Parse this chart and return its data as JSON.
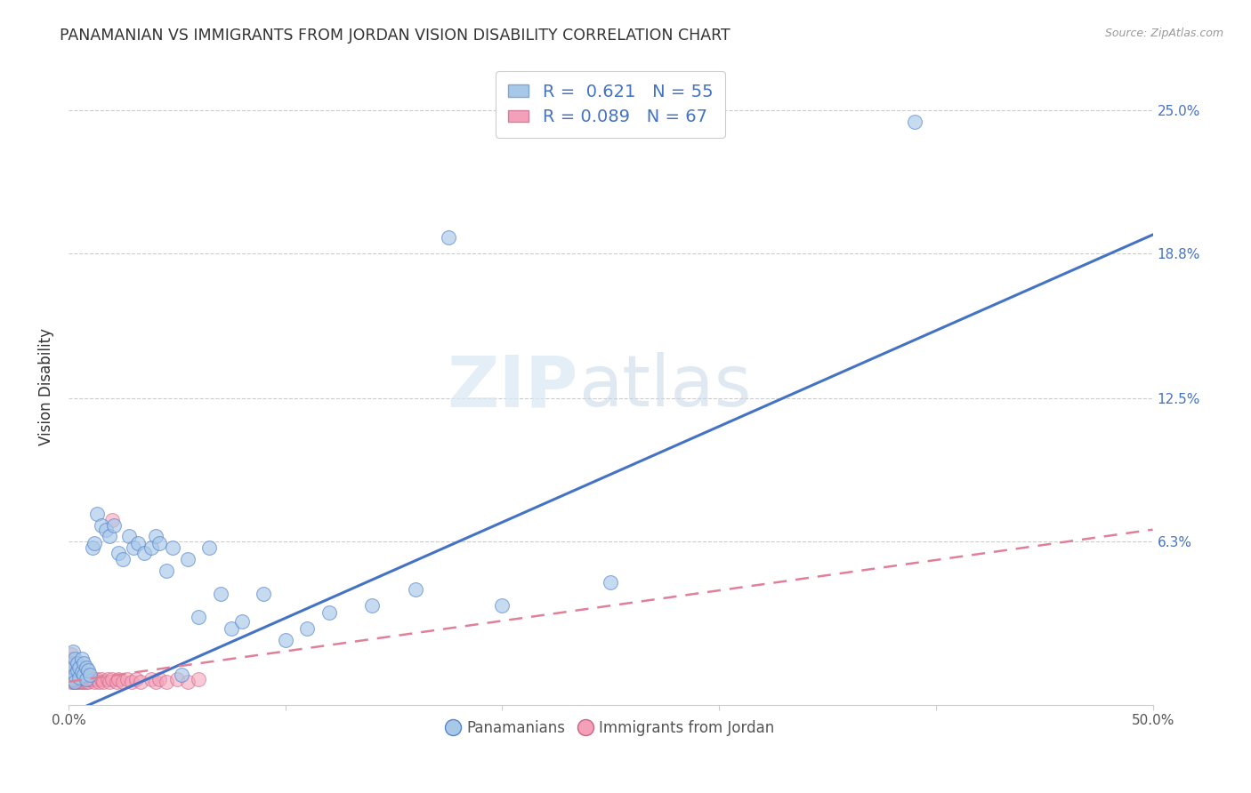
{
  "title": "PANAMANIAN VS IMMIGRANTS FROM JORDAN VISION DISABILITY CORRELATION CHART",
  "source": "Source: ZipAtlas.com",
  "ylabel": "Vision Disability",
  "xlim": [
    0.0,
    0.5
  ],
  "ylim": [
    -0.008,
    0.268
  ],
  "ytick_labels_right": [
    "25.0%",
    "18.8%",
    "12.5%",
    "6.3%"
  ],
  "ytick_values_right": [
    0.25,
    0.188,
    0.125,
    0.063
  ],
  "pan_color": "#a8c8e8",
  "jordan_color": "#f4a0b8",
  "pan_line_color": "#4472c4",
  "jordan_line_color": "#e08098",
  "pan_R": 0.621,
  "pan_N": 55,
  "jordan_R": 0.089,
  "jordan_N": 67,
  "pan_trend_x": [
    0.0,
    0.5
  ],
  "pan_trend_y": [
    -0.012,
    0.196
  ],
  "jordan_trend_x": [
    0.0,
    0.5
  ],
  "jordan_trend_y": [
    0.002,
    0.068
  ],
  "pan_scatter_x": [
    0.001,
    0.001,
    0.002,
    0.002,
    0.002,
    0.003,
    0.003,
    0.003,
    0.004,
    0.004,
    0.005,
    0.005,
    0.006,
    0.006,
    0.007,
    0.007,
    0.008,
    0.008,
    0.009,
    0.01,
    0.011,
    0.012,
    0.013,
    0.015,
    0.017,
    0.019,
    0.021,
    0.023,
    0.025,
    0.028,
    0.03,
    0.032,
    0.035,
    0.038,
    0.04,
    0.042,
    0.045,
    0.048,
    0.052,
    0.055,
    0.06,
    0.065,
    0.07,
    0.075,
    0.08,
    0.09,
    0.1,
    0.11,
    0.12,
    0.14,
    0.16,
    0.2,
    0.25,
    0.175,
    0.39
  ],
  "pan_scatter_y": [
    0.005,
    0.01,
    0.003,
    0.008,
    0.015,
    0.005,
    0.012,
    0.002,
    0.007,
    0.01,
    0.004,
    0.008,
    0.006,
    0.012,
    0.005,
    0.01,
    0.003,
    0.008,
    0.007,
    0.005,
    0.06,
    0.062,
    0.075,
    0.07,
    0.068,
    0.065,
    0.07,
    0.058,
    0.055,
    0.065,
    0.06,
    0.062,
    0.058,
    0.06,
    0.065,
    0.062,
    0.05,
    0.06,
    0.005,
    0.055,
    0.03,
    0.06,
    0.04,
    0.025,
    0.028,
    0.04,
    0.02,
    0.025,
    0.032,
    0.035,
    0.042,
    0.035,
    0.045,
    0.195,
    0.245
  ],
  "jordan_scatter_x": [
    0.001,
    0.001,
    0.001,
    0.001,
    0.001,
    0.001,
    0.001,
    0.001,
    0.001,
    0.001,
    0.001,
    0.002,
    0.002,
    0.002,
    0.002,
    0.002,
    0.002,
    0.002,
    0.002,
    0.003,
    0.003,
    0.003,
    0.003,
    0.003,
    0.003,
    0.004,
    0.004,
    0.004,
    0.004,
    0.005,
    0.005,
    0.005,
    0.005,
    0.006,
    0.006,
    0.006,
    0.007,
    0.007,
    0.008,
    0.008,
    0.009,
    0.01,
    0.01,
    0.011,
    0.012,
    0.013,
    0.014,
    0.015,
    0.016,
    0.018,
    0.019,
    0.02,
    0.022,
    0.023,
    0.025,
    0.027,
    0.029,
    0.031,
    0.033,
    0.038,
    0.04,
    0.042,
    0.045,
    0.05,
    0.055,
    0.06,
    0.02
  ],
  "jordan_scatter_y": [
    0.002,
    0.004,
    0.006,
    0.008,
    0.01,
    0.012,
    0.014,
    0.003,
    0.005,
    0.007,
    0.009,
    0.002,
    0.004,
    0.006,
    0.008,
    0.01,
    0.003,
    0.005,
    0.007,
    0.002,
    0.004,
    0.006,
    0.008,
    0.003,
    0.005,
    0.002,
    0.004,
    0.006,
    0.003,
    0.002,
    0.004,
    0.006,
    0.003,
    0.002,
    0.005,
    0.003,
    0.002,
    0.004,
    0.002,
    0.003,
    0.002,
    0.003,
    0.004,
    0.003,
    0.002,
    0.003,
    0.002,
    0.003,
    0.002,
    0.003,
    0.002,
    0.003,
    0.002,
    0.003,
    0.002,
    0.003,
    0.002,
    0.003,
    0.002,
    0.003,
    0.002,
    0.003,
    0.002,
    0.003,
    0.002,
    0.003,
    0.072
  ],
  "background_color": "#ffffff",
  "grid_color": "#cccccc",
  "title_fontsize": 12.5,
  "axis_label_fontsize": 12,
  "tick_fontsize": 11
}
